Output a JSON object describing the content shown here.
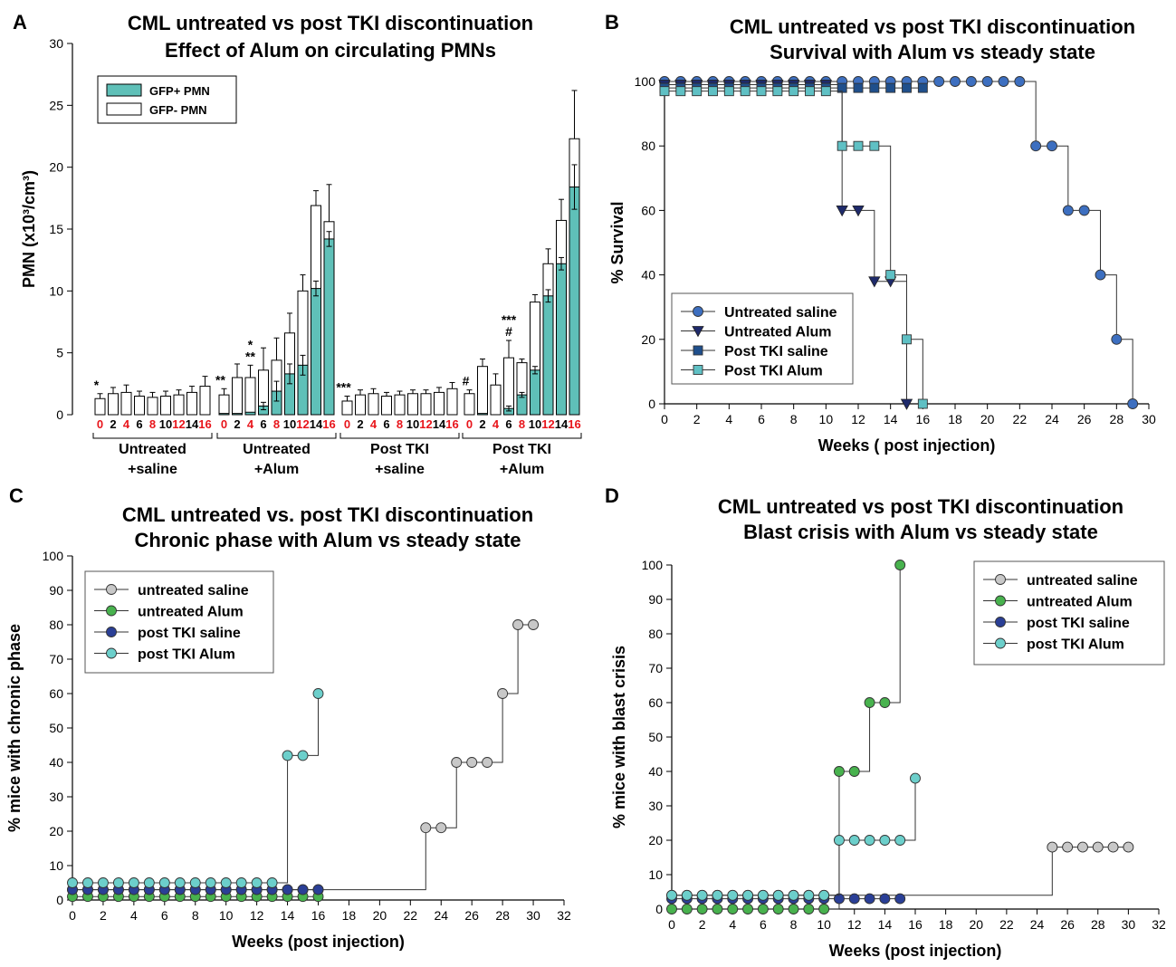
{
  "chart_data": [
    {
      "panel": "A",
      "type": "bar",
      "title": "CML untreated vs post TKI discontinuation",
      "subtitle": "Effect of Alum on circulating PMNs",
      "ylabel": "PMN (x10³/cm³)",
      "ylim": [
        0,
        30
      ],
      "yticks": [
        0,
        5,
        10,
        15,
        20,
        25,
        30
      ],
      "legend_position": "top-left",
      "colors": {
        "gfp_pos": "#5fc0b8",
        "gfp_neg": "#ffffff",
        "week_highlight": "#e8151b"
      },
      "week_labels": [
        "0",
        "2",
        "4",
        "6",
        "8",
        "10",
        "12",
        "14",
        "16"
      ],
      "red_weeks": [
        "0",
        "4",
        "8",
        "12",
        "16"
      ],
      "series": [
        {
          "name": "GFP+ PMN"
        },
        {
          "name": "GFP- PMN"
        }
      ],
      "groups": [
        {
          "label_line1": "Untreated",
          "label_line2": "+saline",
          "total": [
            1.3,
            1.7,
            1.8,
            1.5,
            1.4,
            1.5,
            1.6,
            1.8,
            2.3
          ],
          "err": [
            0.4,
            0.5,
            0.6,
            0.4,
            0.4,
            0.4,
            0.4,
            0.5,
            0.8
          ],
          "gfp_pos": [
            0,
            0,
            0,
            0,
            0,
            0,
            0,
            0,
            0
          ],
          "pos_err": [
            0,
            0,
            0,
            0,
            0,
            0,
            0,
            0,
            0
          ],
          "sig": [
            "*",
            "",
            "",
            "",
            "",
            "",
            "",
            "",
            ""
          ]
        },
        {
          "label_line1": "Untreated",
          "label_line2": "+Alum",
          "total": [
            1.6,
            3.0,
            3.0,
            3.6,
            4.4,
            6.6,
            10.0,
            16.9,
            15.6
          ],
          "err": [
            0.5,
            1.1,
            1.0,
            1.8,
            1.8,
            1.6,
            1.3,
            1.2,
            3.0
          ],
          "gfp_pos": [
            0.1,
            0.1,
            0.2,
            0.7,
            1.9,
            3.3,
            4.0,
            10.2,
            14.2
          ],
          "pos_err": [
            0,
            0,
            0,
            0.3,
            0.8,
            0.8,
            0.8,
            0.6,
            0.6
          ],
          "sig": [
            "**",
            "",
            "*\n**",
            "",
            "",
            "",
            "",
            "",
            ""
          ]
        },
        {
          "label_line1": "Post TKI",
          "label_line2": "+saline",
          "total": [
            1.1,
            1.6,
            1.7,
            1.5,
            1.6,
            1.7,
            1.7,
            1.8,
            2.1
          ],
          "err": [
            0.4,
            0.4,
            0.4,
            0.3,
            0.3,
            0.3,
            0.3,
            0.4,
            0.5
          ],
          "gfp_pos": [
            0,
            0,
            0,
            0,
            0,
            0,
            0,
            0,
            0
          ],
          "pos_err": [
            0,
            0,
            0,
            0,
            0,
            0,
            0,
            0,
            0
          ],
          "sig": [
            "***",
            "",
            "",
            "",
            "",
            "",
            "",
            "",
            ""
          ]
        },
        {
          "label_line1": "Post TKI",
          "label_line2": "+Alum",
          "total": [
            1.7,
            3.9,
            2.4,
            4.6,
            4.2,
            9.1,
            12.2,
            15.7,
            22.3
          ],
          "err": [
            0.3,
            0.6,
            0.9,
            1.4,
            0.3,
            0.6,
            1.2,
            1.7,
            3.9
          ],
          "gfp_pos": [
            0,
            0.1,
            0,
            0.5,
            1.6,
            3.6,
            9.6,
            12.2,
            18.4
          ],
          "pos_err": [
            0,
            0,
            0,
            0.2,
            0.2,
            0.3,
            0.5,
            0.5,
            1.8
          ],
          "sig": [
            "#",
            "",
            "",
            "***\n#",
            "",
            "",
            "",
            "",
            ""
          ]
        }
      ]
    },
    {
      "panel": "B",
      "type": "line",
      "step": true,
      "title": "CML untreated vs post TKI discontinuation",
      "subtitle": "Survival with Alum vs steady state",
      "xlabel": "Weeks ( post injection)",
      "ylabel": "% Survival",
      "xlim": [
        0,
        30
      ],
      "ylim": [
        0,
        100
      ],
      "xticks": [
        0,
        2,
        4,
        6,
        8,
        10,
        12,
        14,
        16,
        18,
        20,
        22,
        24,
        26,
        28,
        30
      ],
      "yticks": [
        0,
        20,
        40,
        60,
        80,
        100
      ],
      "legend_position": "bottom-left",
      "series": [
        {
          "name": "Untreated saline",
          "marker": "circle",
          "color": "#3d6fc0",
          "x": [
            0,
            1,
            2,
            3,
            4,
            5,
            6,
            7,
            8,
            9,
            10,
            11,
            12,
            13,
            14,
            15,
            16,
            17,
            18,
            19,
            20,
            21,
            22,
            23,
            24,
            25,
            26,
            27,
            28,
            29
          ],
          "y": [
            100,
            100,
            100,
            100,
            100,
            100,
            100,
            100,
            100,
            100,
            100,
            100,
            100,
            100,
            100,
            100,
            100,
            100,
            100,
            100,
            100,
            100,
            100,
            80,
            80,
            60,
            60,
            40,
            20,
            0
          ]
        },
        {
          "name": "Untreated Alum",
          "marker": "triangle-down",
          "color": "#1e2a6b",
          "x": [
            0,
            1,
            2,
            3,
            4,
            5,
            6,
            7,
            8,
            9,
            10,
            11,
            12,
            13,
            14,
            15
          ],
          "y": [
            99,
            99,
            99,
            99,
            99,
            99,
            99,
            99,
            99,
            99,
            99,
            60,
            60,
            38,
            38,
            0
          ]
        },
        {
          "name": "Post TKI saline",
          "marker": "square",
          "color": "#1f4f8c",
          "x": [
            0,
            1,
            2,
            3,
            4,
            5,
            6,
            7,
            8,
            9,
            10,
            11,
            12,
            13,
            14,
            15,
            16
          ],
          "y": [
            98,
            98,
            98,
            98,
            98,
            98,
            98,
            98,
            98,
            98,
            98,
            98,
            98,
            98,
            98,
            98,
            98
          ]
        },
        {
          "name": "Post TKI Alum",
          "marker": "square",
          "color": "#5fc0c4",
          "x": [
            0,
            1,
            2,
            3,
            4,
            5,
            6,
            7,
            8,
            9,
            10,
            11,
            12,
            13,
            14,
            15,
            16
          ],
          "y": [
            97,
            97,
            97,
            97,
            97,
            97,
            97,
            97,
            97,
            97,
            97,
            80,
            80,
            80,
            40,
            20,
            0
          ]
        }
      ]
    },
    {
      "panel": "C",
      "type": "line",
      "step": true,
      "title": "CML untreated vs. post TKI discontinuation",
      "subtitle": "Chronic phase with Alum vs steady state",
      "xlabel": "Weeks (post injection)",
      "ylabel": "% mice with chronic phase",
      "xlim": [
        0,
        32
      ],
      "ylim": [
        0,
        100
      ],
      "xticks": [
        0,
        2,
        4,
        6,
        8,
        10,
        12,
        14,
        16,
        18,
        20,
        22,
        24,
        26,
        28,
        30,
        32
      ],
      "yticks": [
        0,
        10,
        20,
        30,
        40,
        50,
        60,
        70,
        80,
        90,
        100
      ],
      "legend_position": "top-left",
      "series": [
        {
          "name": "untreated saline",
          "marker": "circle",
          "color": "#c8c8c8",
          "x": [
            0,
            1,
            2,
            3,
            4,
            5,
            6,
            7,
            8,
            9,
            10,
            11,
            12,
            13,
            14,
            15,
            16,
            23,
            24,
            25,
            26,
            27,
            28,
            29,
            30
          ],
          "y": [
            3,
            3,
            3,
            3,
            3,
            3,
            3,
            3,
            3,
            3,
            3,
            3,
            3,
            3,
            3,
            3,
            3,
            21,
            21,
            40,
            40,
            40,
            60,
            80,
            80
          ]
        },
        {
          "name": "untreated Alum",
          "marker": "circle",
          "color": "#48b24e",
          "x": [
            0,
            1,
            2,
            3,
            4,
            5,
            6,
            7,
            8,
            9,
            10,
            11,
            12,
            13,
            14,
            15,
            16
          ],
          "y": [
            1,
            1,
            1,
            1,
            1,
            1,
            1,
            1,
            1,
            1,
            1,
            1,
            1,
            1,
            1,
            1,
            1
          ]
        },
        {
          "name": "post TKI saline",
          "marker": "circle",
          "color": "#2a3f96",
          "x": [
            0,
            1,
            2,
            3,
            4,
            5,
            6,
            7,
            8,
            9,
            10,
            11,
            12,
            13,
            14,
            15,
            16
          ],
          "y": [
            3,
            3,
            3,
            3,
            3,
            3,
            3,
            3,
            3,
            3,
            3,
            3,
            3,
            3,
            3,
            3,
            3
          ]
        },
        {
          "name": "post TKI Alum",
          "marker": "circle",
          "color": "#6ccfcb",
          "x": [
            0,
            1,
            2,
            3,
            4,
            5,
            6,
            7,
            8,
            9,
            10,
            11,
            12,
            13,
            14,
            15,
            16
          ],
          "y": [
            5,
            5,
            5,
            5,
            5,
            5,
            5,
            5,
            5,
            5,
            5,
            5,
            5,
            5,
            42,
            42,
            60
          ]
        }
      ]
    },
    {
      "panel": "D",
      "type": "line",
      "step": true,
      "title": "CML untreated vs post TKI discontinuation",
      "subtitle": "Blast crisis with Alum vs steady state",
      "xlabel": "Weeks (post injection)",
      "ylabel": "% mice with blast crisis",
      "xlim": [
        0,
        32
      ],
      "ylim": [
        0,
        100
      ],
      "xticks": [
        0,
        2,
        4,
        6,
        8,
        10,
        12,
        14,
        16,
        18,
        20,
        22,
        24,
        26,
        28,
        30,
        32
      ],
      "yticks": [
        0,
        10,
        20,
        30,
        40,
        50,
        60,
        70,
        80,
        90,
        100
      ],
      "legend_position": "top-right",
      "series": [
        {
          "name": "untreated saline",
          "marker": "circle",
          "color": "#c8c8c8",
          "x": [
            0,
            1,
            2,
            3,
            4,
            5,
            6,
            7,
            8,
            9,
            10,
            25,
            26,
            27,
            28,
            29,
            30
          ],
          "y": [
            4,
            4,
            4,
            4,
            4,
            4,
            4,
            4,
            4,
            4,
            4,
            18,
            18,
            18,
            18,
            18,
            18
          ]
        },
        {
          "name": "untreated Alum",
          "marker": "circle",
          "color": "#48b24e",
          "x": [
            0,
            1,
            2,
            3,
            4,
            5,
            6,
            7,
            8,
            9,
            10,
            11,
            12,
            13,
            14,
            15
          ],
          "y": [
            0,
            0,
            0,
            0,
            0,
            0,
            0,
            0,
            0,
            0,
            0,
            40,
            40,
            60,
            60,
            100
          ]
        },
        {
          "name": "post TKI saline",
          "marker": "circle",
          "color": "#2a3f96",
          "x": [
            0,
            1,
            2,
            3,
            4,
            5,
            6,
            7,
            8,
            9,
            10,
            11,
            12,
            13,
            14,
            15
          ],
          "y": [
            3,
            3,
            3,
            3,
            3,
            3,
            3,
            3,
            3,
            3,
            3,
            3,
            3,
            3,
            3,
            3
          ]
        },
        {
          "name": "post TKI Alum",
          "marker": "circle",
          "color": "#6ccfcb",
          "x": [
            0,
            1,
            2,
            3,
            4,
            5,
            6,
            7,
            8,
            9,
            10,
            11,
            12,
            13,
            14,
            15,
            16
          ],
          "y": [
            4,
            4,
            4,
            4,
            4,
            4,
            4,
            4,
            4,
            4,
            4,
            20,
            20,
            20,
            20,
            20,
            38
          ]
        }
      ]
    }
  ]
}
